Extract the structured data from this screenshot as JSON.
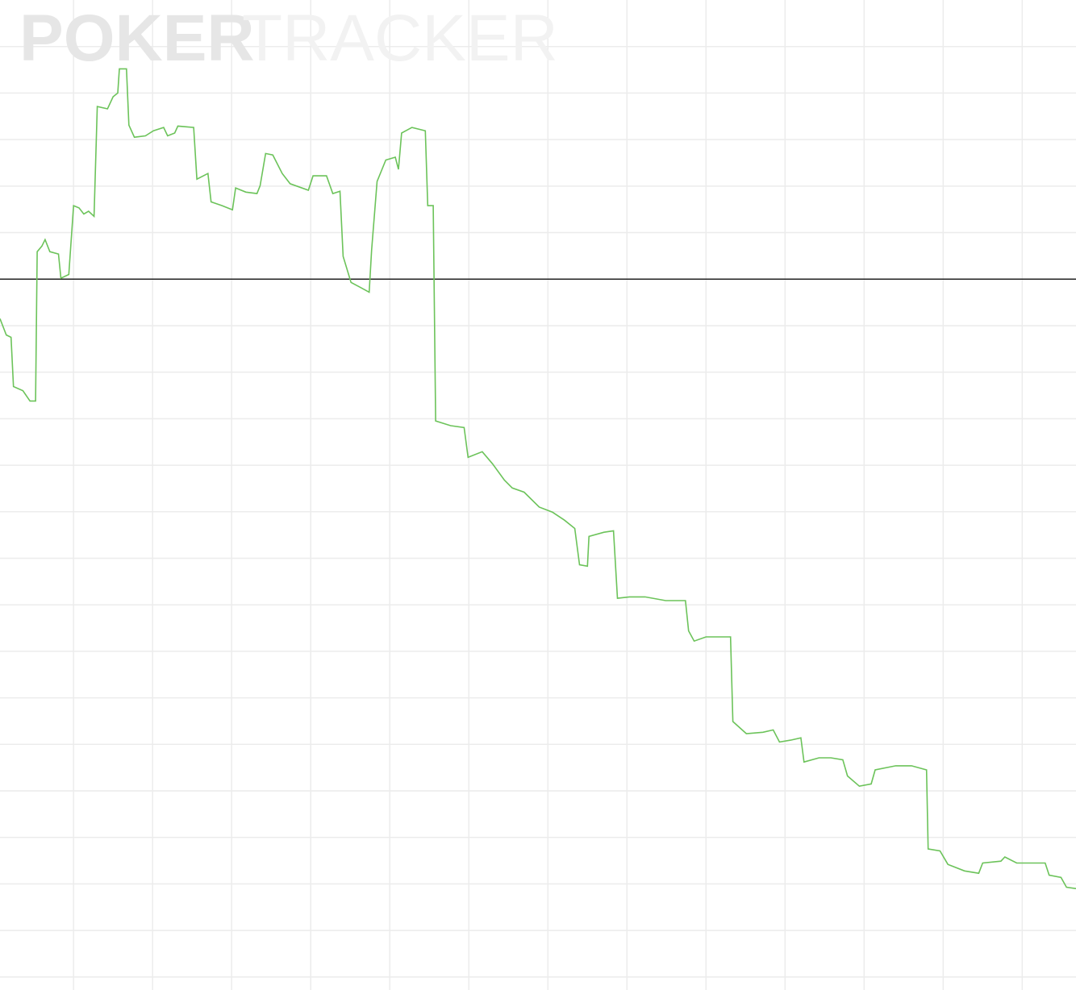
{
  "chart_data": {
    "type": "line",
    "watermark": [
      "POKER",
      "TRACKER"
    ],
    "x": [
      0.07,
      0.15,
      0.21,
      0.24,
      0.36,
      0.45,
      0.52,
      0.54,
      0.6,
      0.64,
      0.7,
      0.81,
      0.84,
      0.94,
      1.0,
      1.07,
      1.13,
      1.19,
      1.26,
      1.3,
      1.43,
      1.5,
      1.56,
      1.58,
      1.67,
      1.7,
      1.77,
      1.91,
      2.01,
      2.14,
      2.19,
      2.28,
      2.32,
      2.52,
      2.56,
      2.7,
      2.74,
      2.88,
      3.01,
      3.05,
      3.18,
      3.32,
      3.36,
      3.43,
      3.52,
      3.64,
      3.74,
      3.97,
      4.03,
      4.2,
      4.28,
      4.37,
      4.41,
      4.51,
      4.62,
      4.74,
      4.77,
      4.84,
      4.95,
      5.07,
      5.11,
      5.15,
      5.28,
      5.45,
      5.48,
      5.55,
      5.58,
      5.77,
      5.94,
      5.99,
      6.17,
      6.3,
      6.45,
      6.55,
      6.7,
      6.89,
      7.06,
      7.21,
      7.34,
      7.4,
      7.5,
      7.52,
      7.71,
      7.83,
      7.88,
      8.03,
      8.23,
      8.49,
      8.74,
      8.78,
      8.85,
      9.0,
      9.31,
      9.34,
      9.51,
      9.72,
      9.85,
      9.93,
      10.07,
      10.2,
      10.24,
      10.43,
      10.58,
      10.73,
      10.79,
      10.94,
      11.09,
      11.14,
      11.4,
      11.6,
      11.79,
      11.81,
      11.96,
      12.06,
      12.27,
      12.45,
      12.5,
      12.73,
      12.78,
      12.93,
      13.29,
      13.34,
      13.49,
      13.56,
      13.68
    ],
    "series": [
      {
        "color": "#6cc35a",
        "values": [
          -0.85,
          -1.2,
          -1.25,
          -2.31,
          -2.4,
          -2.62,
          -2.62,
          0.59,
          0.71,
          0.85,
          0.59,
          0.54,
          0.02,
          0.1,
          1.58,
          1.53,
          1.4,
          1.46,
          1.35,
          3.71,
          3.66,
          3.92,
          4.0,
          4.52,
          4.52,
          3.31,
          3.05,
          3.08,
          3.19,
          3.26,
          3.08,
          3.14,
          3.29,
          3.26,
          2.15,
          2.27,
          1.66,
          1.58,
          1.49,
          1.96,
          1.87,
          1.84,
          2.01,
          2.7,
          2.67,
          2.27,
          2.05,
          1.91,
          2.22,
          2.22,
          1.84,
          1.89,
          0.49,
          -0.07,
          -0.17,
          -0.28,
          0.62,
          2.1,
          2.56,
          2.62,
          2.36,
          3.14,
          3.26,
          3.19,
          1.58,
          1.58,
          -3.05,
          -3.15,
          -3.19,
          -3.83,
          -3.71,
          -3.97,
          -4.32,
          -4.49,
          -4.58,
          -4.9,
          -5.01,
          -5.18,
          -5.36,
          -6.14,
          -6.17,
          -5.53,
          -5.44,
          -5.41,
          -6.86,
          -6.83,
          -6.83,
          -6.91,
          -6.91,
          -7.56,
          -7.78,
          -7.69,
          -7.69,
          -9.51,
          -9.77,
          -9.74,
          -9.69,
          -9.95,
          -9.91,
          -9.86,
          -10.38,
          -10.29,
          -10.29,
          -10.33,
          -10.68,
          -10.9,
          -10.85,
          -10.55,
          -10.46,
          -10.46,
          -10.55,
          -12.25,
          -12.29,
          -12.58,
          -12.72,
          -12.77,
          -12.55,
          -12.51,
          -12.42,
          -12.55,
          -12.55,
          -12.81,
          -12.86,
          -13.07,
          -13.1
        ]
      }
    ],
    "xlim": [
      0.07,
      13.68
    ],
    "xticks": [
      1,
      2,
      3,
      4,
      5,
      6,
      7,
      8,
      9,
      10,
      11,
      12,
      13
    ],
    "ylim": [
      -15.28,
      6
    ],
    "yticks": [
      5,
      4,
      3,
      2,
      1,
      0,
      -1,
      -2,
      -3,
      -4,
      -5,
      -6,
      -7,
      -8,
      -9,
      -10,
      -11,
      -12,
      -13,
      -14,
      -15
    ],
    "grid": true,
    "zero_line": 0
  }
}
